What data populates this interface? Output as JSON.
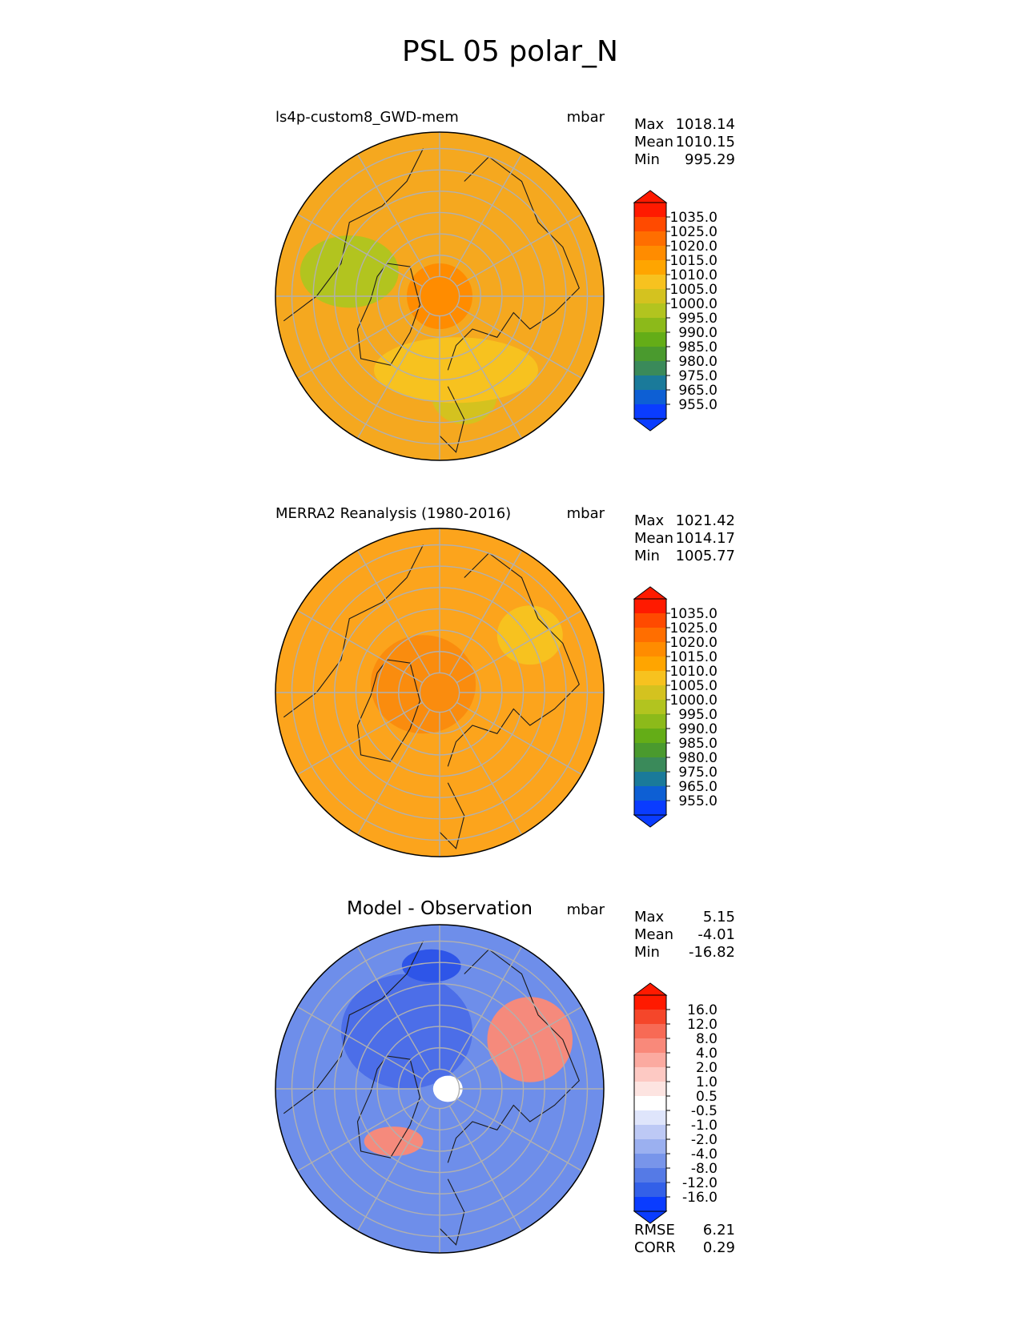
{
  "title": "PSL 05 polar_N",
  "chart_data": [
    {
      "type": "heatmap",
      "projection": "north-polar-stereographic",
      "title": "ls4p-custom8_GWD-mem",
      "units": "mbar",
      "stats": {
        "max_label": "Max",
        "max": "1018.14",
        "mean_label": "Mean",
        "mean": "1010.15",
        "min_label": "Min",
        "min": "995.29"
      },
      "colorbar": {
        "ticks": [
          "1035.0",
          "1025.0",
          "1020.0",
          "1015.0",
          "1010.0",
          "1005.0",
          "1000.0",
          "995.0",
          "990.0",
          "985.0",
          "980.0",
          "975.0",
          "965.0",
          "955.0"
        ],
        "colors": [
          "#ff1a00",
          "#ff4a00",
          "#ff6e00",
          "#ff8c00",
          "#ffa500",
          "#f7c21f",
          "#d4c21f",
          "#b2c41f",
          "#8cba1a",
          "#64ad17",
          "#4a9a2e",
          "#3a8a5a",
          "#1a7a9a",
          "#0d5fd4",
          "#0a3cff"
        ],
        "extend": "both"
      },
      "field": {
        "background": "#f5a81f",
        "regions": [
          {
            "name": "greenland-low",
            "color": "#b2c41f",
            "cx": -0.55,
            "cy": -0.15,
            "rx": 0.3,
            "ry": 0.22
          },
          {
            "name": "alaska-low",
            "color": "#d4c21f",
            "cx": 0.15,
            "cy": 0.6,
            "rx": 0.2,
            "ry": 0.18
          },
          {
            "name": "central-high",
            "color": "#ff8c00",
            "cx": 0.0,
            "cy": 0.0,
            "rx": 0.2,
            "ry": 0.2
          },
          {
            "name": "siberia-band",
            "color": "#f7c21f",
            "cx": 0.1,
            "cy": 0.45,
            "rx": 0.5,
            "ry": 0.2
          }
        ]
      }
    },
    {
      "type": "heatmap",
      "projection": "north-polar-stereographic",
      "title": "MERRA2 Reanalysis (1980-2016)",
      "units": "mbar",
      "stats": {
        "max_label": "Max",
        "max": "1021.42",
        "mean_label": "Mean",
        "mean": "1014.17",
        "min_label": "Min",
        "min": "1005.77"
      },
      "colorbar": {
        "ticks": [
          "1035.0",
          "1025.0",
          "1020.0",
          "1015.0",
          "1010.0",
          "1005.0",
          "1000.0",
          "995.0",
          "990.0",
          "985.0",
          "980.0",
          "975.0",
          "965.0",
          "955.0"
        ],
        "colors": [
          "#ff1a00",
          "#ff4a00",
          "#ff6e00",
          "#ff8c00",
          "#ffa500",
          "#f7c21f",
          "#d4c21f",
          "#b2c41f",
          "#8cba1a",
          "#64ad17",
          "#4a9a2e",
          "#3a8a5a",
          "#1a7a9a",
          "#0d5fd4",
          "#0a3cff"
        ],
        "extend": "both"
      },
      "field": {
        "background": "#fca41c",
        "regions": [
          {
            "name": "central-high",
            "color": "#fa8c0e",
            "cx": -0.1,
            "cy": -0.05,
            "rx": 0.32,
            "ry": 0.3
          },
          {
            "name": "pacific-low",
            "color": "#f7c21f",
            "cx": 0.55,
            "cy": -0.35,
            "rx": 0.2,
            "ry": 0.18
          }
        ]
      }
    },
    {
      "type": "heatmap",
      "projection": "north-polar-stereographic",
      "title": "Model - Observation",
      "units": "mbar",
      "stats": {
        "max_label": "Max",
        "max": "5.15",
        "mean_label": "Mean",
        "mean": "-4.01",
        "min_label": "Min",
        "min": "-16.82"
      },
      "metrics": {
        "rmse_label": "RMSE",
        "rmse": "6.21",
        "corr_label": "CORR",
        "corr": "0.29"
      },
      "colorbar": {
        "ticks": [
          "16.0",
          "12.0",
          "8.0",
          "4.0",
          "2.0",
          "1.0",
          "0.5",
          "-0.5",
          "-1.0",
          "-2.0",
          "-4.0",
          "-8.0",
          "-12.0",
          "-16.0"
        ],
        "colors": [
          "#ff1a00",
          "#f5462a",
          "#f76a55",
          "#f9897a",
          "#fbaaa0",
          "#fdc9c3",
          "#fde4e1",
          "#ffffff",
          "#dfe5fb",
          "#bdc9f5",
          "#9bb0f0",
          "#7895ea",
          "#557ae6",
          "#3360e8",
          "#0a3cff"
        ],
        "extend": "both"
      },
      "field": {
        "background": "#6e8eea",
        "regions": [
          {
            "name": "arctic-neg",
            "color": "#4c6ee8",
            "cx": -0.2,
            "cy": -0.35,
            "rx": 0.4,
            "ry": 0.35
          },
          {
            "name": "deep-neg",
            "color": "#2e55e8",
            "cx": -0.05,
            "cy": -0.75,
            "rx": 0.18,
            "ry": 0.1
          },
          {
            "name": "pacific-pos",
            "color": "#f58a7c",
            "cx": 0.55,
            "cy": -0.3,
            "rx": 0.26,
            "ry": 0.26
          },
          {
            "name": "greenland-pos",
            "color": "#f58a7c",
            "cx": -0.28,
            "cy": 0.32,
            "rx": 0.18,
            "ry": 0.09
          },
          {
            "name": "pole-neutral",
            "color": "#ffffff",
            "cx": 0.05,
            "cy": 0.0,
            "rx": 0.09,
            "ry": 0.08
          }
        ]
      }
    }
  ]
}
